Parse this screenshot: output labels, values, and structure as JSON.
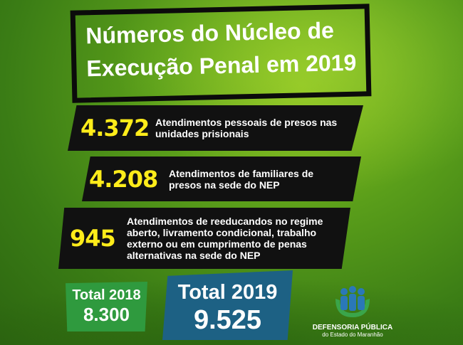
{
  "title": {
    "line1": "Números do Núcleo de",
    "line2": "Execução Penal em 2019"
  },
  "stats": [
    {
      "value": "4.372",
      "description": "Atendimentos pessoais de presos nas unidades prisionais"
    },
    {
      "value": "4.208",
      "description": "Atendimentos de familiares de presos na sede do NEP"
    },
    {
      "value": "945",
      "description": "Atendimentos de reeducandos no regime aberto, livramento condicional, trabalho externo ou em cumprimento de penas alternativas na sede do NEP"
    }
  ],
  "totals": [
    {
      "label": "Total 2018",
      "value": "8.300",
      "color": "#2f9a3e"
    },
    {
      "label": "Total 2019",
      "value": "9.525",
      "color": "#1d6184"
    }
  ],
  "logo": {
    "name": "DEFENSORIA PÚBLICA",
    "subtitle": "do Estado do Maranhão",
    "icon": "people-in-hands-icon"
  },
  "colors": {
    "number": "#ffec1a",
    "background": "#4a8e18"
  }
}
